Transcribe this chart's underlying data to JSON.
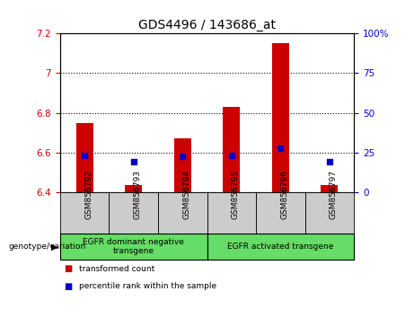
{
  "title": "GDS4496 / 143686_at",
  "samples": [
    "GSM856792",
    "GSM856793",
    "GSM856794",
    "GSM856795",
    "GSM856796",
    "GSM856797"
  ],
  "bar_values": [
    6.75,
    6.435,
    6.67,
    6.83,
    7.15,
    6.435
  ],
  "bar_baseline": 6.4,
  "bar_color": "#cc0000",
  "percentile_values": [
    6.585,
    6.553,
    6.582,
    6.588,
    6.622,
    6.555
  ],
  "percentile_color": "#0000cc",
  "ylim_left": [
    6.4,
    7.2
  ],
  "ylim_right": [
    0,
    100
  ],
  "yticks_left": [
    6.4,
    6.6,
    6.8,
    7.0,
    7.2
  ],
  "ytick_labels_left": [
    "6.4",
    "6.6",
    "6.8",
    "7",
    "7.2"
  ],
  "yticks_right_vals": [
    0,
    25,
    50,
    75,
    100
  ],
  "ytick_labels_right": [
    "0",
    "25",
    "50",
    "75",
    "100%"
  ],
  "hlines": [
    6.6,
    6.8,
    7.0
  ],
  "groups": [
    {
      "label": "EGFR dominant negative\ntransgene",
      "start": 0,
      "end": 2,
      "color": "#66dd66"
    },
    {
      "label": "EGFR activated transgene",
      "start": 3,
      "end": 5,
      "color": "#66dd66"
    }
  ],
  "xlabel_group": "genotype/variation",
  "legend_items": [
    {
      "color": "#cc0000",
      "label": "transformed count"
    },
    {
      "color": "#0000cc",
      "label": "percentile rank within the sample"
    }
  ],
  "tick_area_color": "#cccccc",
  "bar_width": 0.35,
  "title_fontsize": 10,
  "tick_fontsize": 7.5,
  "label_fontsize": 7.5
}
